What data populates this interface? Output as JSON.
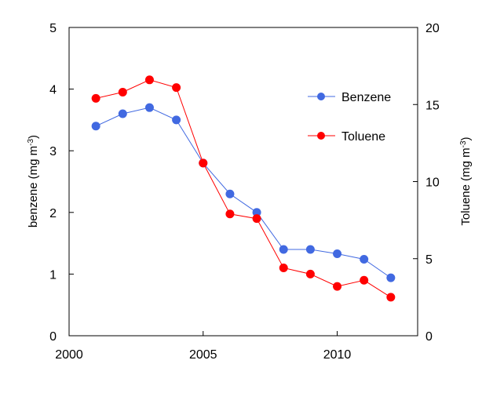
{
  "chart_data": {
    "type": "line",
    "x": [
      2001,
      2002,
      2003,
      2004,
      2005,
      2006,
      2007,
      2008,
      2009,
      2010,
      2011,
      2012
    ],
    "xlim": [
      2000,
      2013
    ],
    "xticks": [
      "2000",
      "2005",
      "2010"
    ],
    "y_left": {
      "label_main": "benzene (mg m",
      "label_sup": "-3",
      "label_end": ")",
      "lim": [
        0,
        5
      ],
      "ticks": [
        "0",
        "1",
        "2",
        "3",
        "4",
        "5"
      ]
    },
    "y_right": {
      "label_main": "Toluene (mg m",
      "label_sup": "-3",
      "label_end": ")",
      "lim": [
        0,
        20
      ],
      "ticks": [
        "0",
        "5",
        "10",
        "15",
        "20"
      ]
    },
    "series": [
      {
        "name": "Benzene",
        "axis": "left",
        "color": "#4169E1",
        "values": [
          3.4,
          3.6,
          3.7,
          3.5,
          2.8,
          2.3,
          2.0,
          1.4,
          1.4,
          1.33,
          1.24,
          0.94
        ]
      },
      {
        "name": "Toluene",
        "axis": "right",
        "color": "#FF0000",
        "values": [
          15.4,
          15.8,
          16.6,
          16.1,
          11.2,
          7.9,
          7.6,
          4.4,
          4.0,
          3.2,
          3.6,
          2.5
        ]
      }
    ],
    "grid": false,
    "legend_position": "top-right"
  }
}
